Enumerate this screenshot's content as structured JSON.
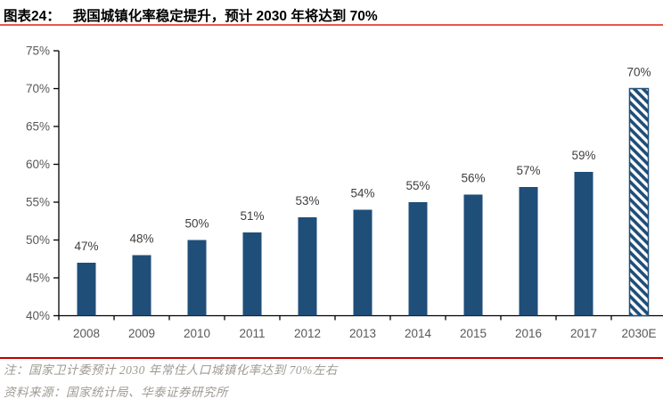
{
  "header": {
    "figure_label": "图表24：",
    "title": "我国城镇化率稳定提升，预计 2030 年将达到 70%"
  },
  "chart_data": {
    "type": "bar",
    "categories": [
      "2008",
      "2009",
      "2010",
      "2011",
      "2012",
      "2013",
      "2014",
      "2015",
      "2016",
      "2017",
      "2030E"
    ],
    "values": [
      47,
      48,
      50,
      51,
      53,
      54,
      55,
      56,
      57,
      59,
      70
    ],
    "data_labels": [
      "47%",
      "48%",
      "50%",
      "51%",
      "53%",
      "54%",
      "55%",
      "56%",
      "57%",
      "59%",
      "70%"
    ],
    "title": "",
    "xlabel": "",
    "ylabel": "",
    "ylim": [
      40,
      75
    ],
    "ytick_step": 5,
    "ytick_labels": [
      "40%",
      "45%",
      "50%",
      "55%",
      "60%",
      "65%",
      "70%",
      "75%"
    ],
    "grid": false,
    "legend": "none",
    "bar_color": "#1F4E79",
    "hatched_category": "2030E",
    "hatch_style": "diagonal-stripes"
  },
  "footer": {
    "note": "注：国家卫计委预计 2030 年常住人口城镇化率达到 70%左右",
    "source": "资料来源：国家统计局、华泰证券研究所"
  },
  "colors": {
    "bar": "#1F4E79",
    "accent_underline": "#E8584B",
    "divider": "#C00000",
    "axis": "#000000",
    "tick_label": "#595959",
    "data_label": "#3F3F3F",
    "note_text": "#9E9A94",
    "title_text": "#000000"
  }
}
